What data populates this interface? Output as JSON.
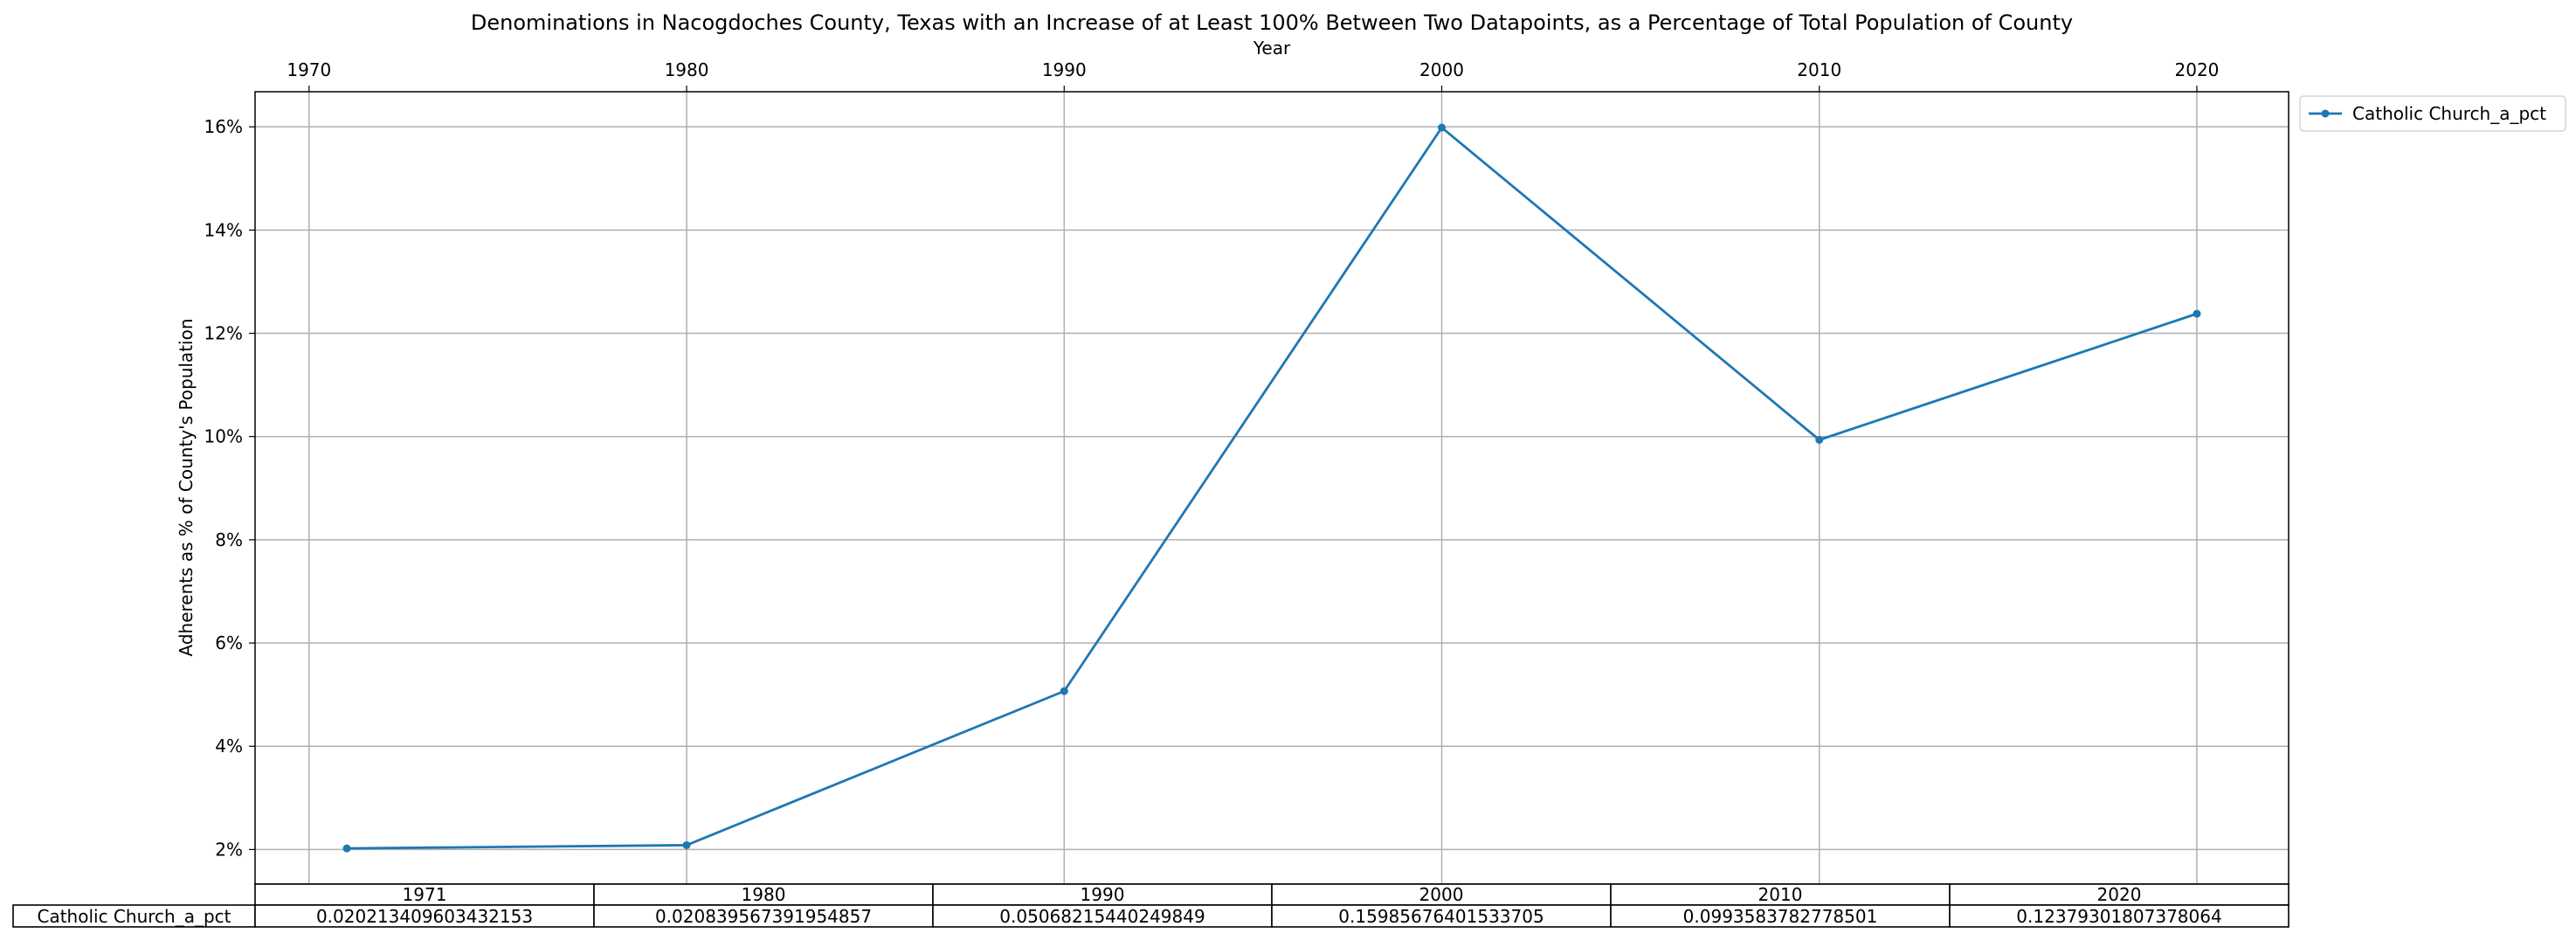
{
  "chart_data": {
    "type": "line",
    "title": "Denominations in Nacogdoches County, Texas with an Increase of at Least 100% Between Two Datapoints, as a Percentage of Total Population of County",
    "xlabel": "Year",
    "ylabel": "Adherents as % of County's Population",
    "x_axis_position": "top",
    "xlim": [
      1968.57,
      2022.43
    ],
    "ylim": [
      0.0133,
      0.1668
    ],
    "x_ticks": [
      1970,
      1980,
      1990,
      2000,
      2010,
      2020
    ],
    "x_tick_labels": [
      "1970",
      "1980",
      "1990",
      "2000",
      "2010",
      "2020"
    ],
    "y_ticks": [
      0.02,
      0.04,
      0.06,
      0.08,
      0.1,
      0.12,
      0.14,
      0.16
    ],
    "y_tick_labels": [
      "2%",
      "4%",
      "6%",
      "8%",
      "10%",
      "12%",
      "14%",
      "16%"
    ],
    "grid": true,
    "legend_placement": "outside-top-right",
    "x": [
      1971,
      1980,
      1990,
      2000,
      2010,
      2020
    ],
    "series": [
      {
        "name": "Catholic Church_a_pct",
        "color": "#1f77b4",
        "marker": "circle",
        "values": [
          0.020213409603432153,
          0.020839567391954857,
          0.05068215440249849,
          0.15985676401533705,
          0.0993583782778501,
          0.12379301807378064
        ]
      }
    ],
    "table": {
      "col_labels": [
        "1971",
        "1980",
        "1990",
        "2000",
        "2010",
        "2020"
      ],
      "rows": [
        {
          "label": "Catholic Church_a_pct",
          "cells": [
            "0.020213409603432153",
            "0.020839567391954857",
            "0.05068215440249849",
            "0.15985676401533705",
            "0.0993583782778501",
            "0.12379301807378064"
          ]
        }
      ]
    }
  }
}
